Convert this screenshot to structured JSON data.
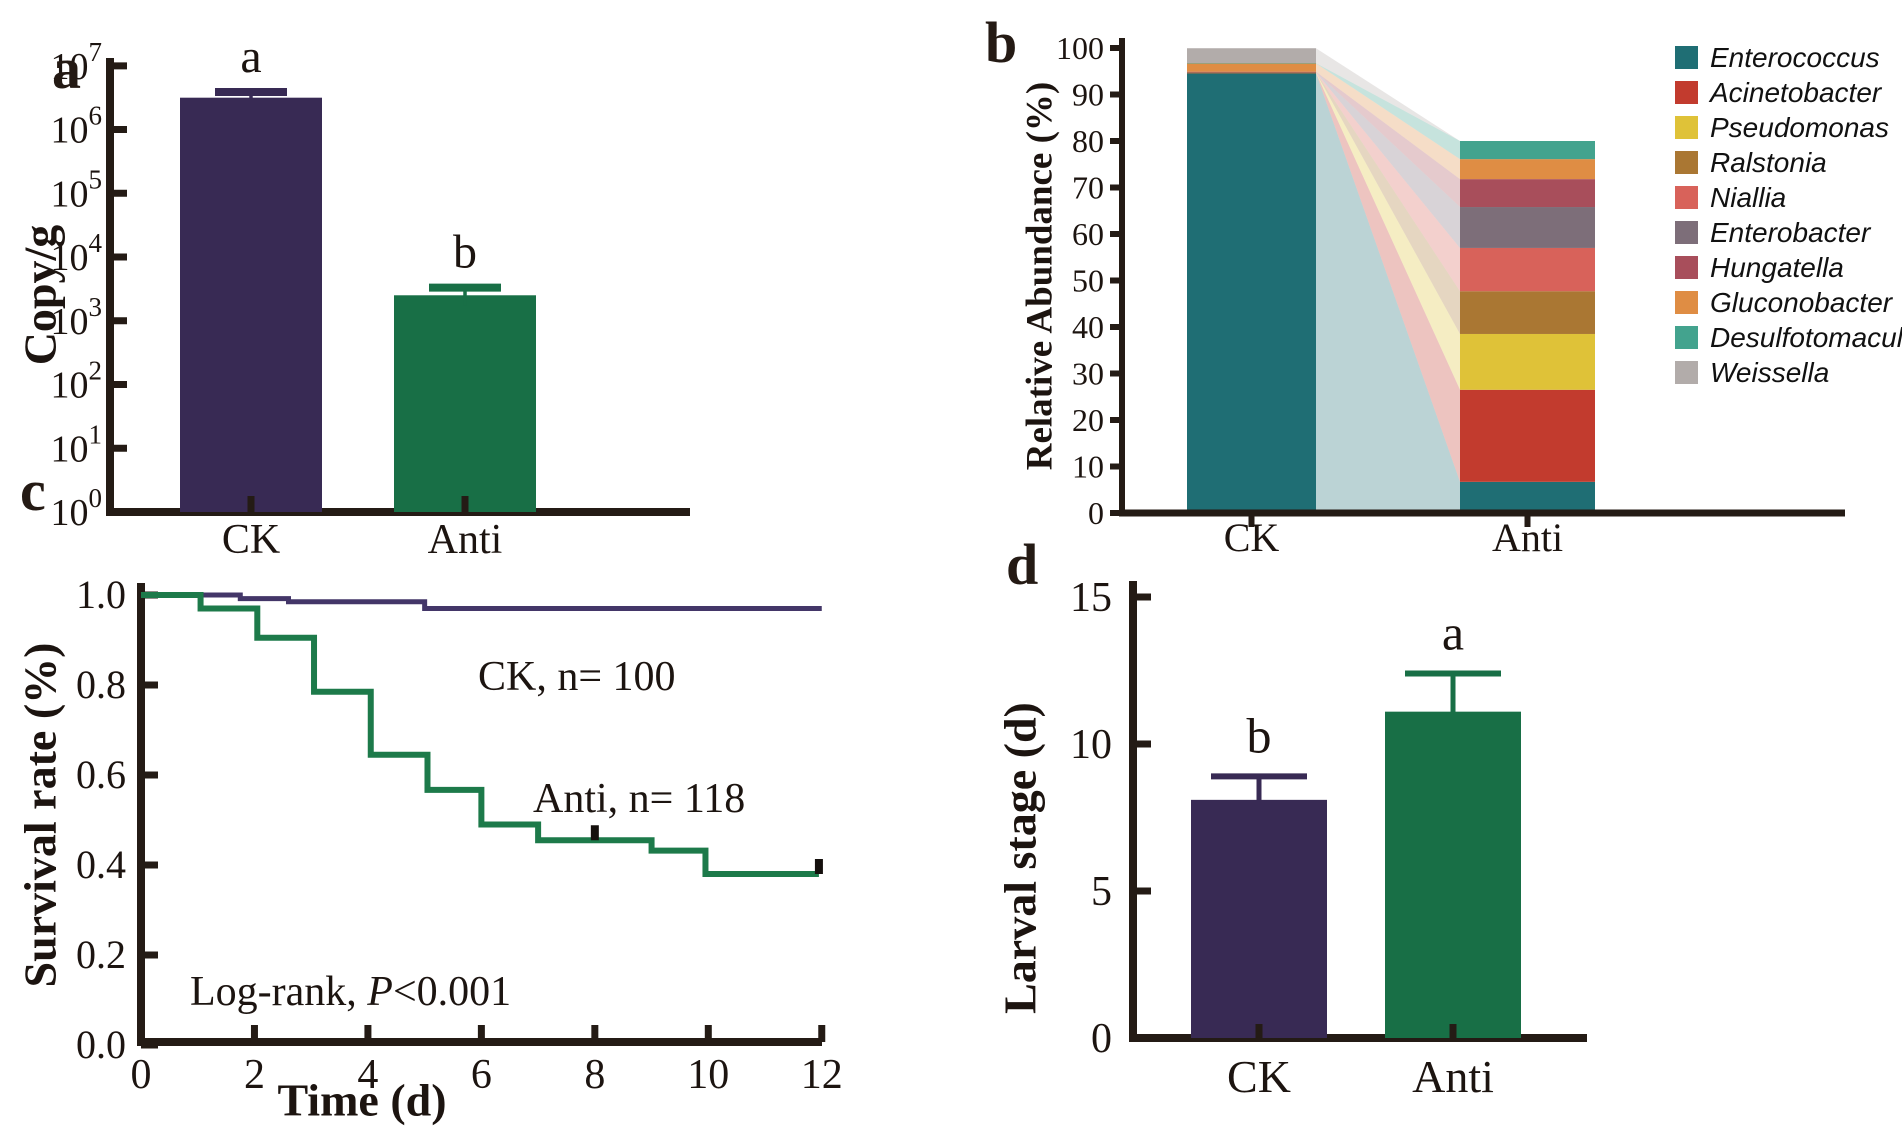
{
  "figure": {
    "background": "#ffffff",
    "axis_color": "#241b15",
    "text_color": "#1c1410"
  },
  "chart_data": [
    {
      "panel_letter": "a",
      "type": "bar",
      "yscale": "log10",
      "ylabel": "Copy/g",
      "y_tick_exponents": [
        0,
        1,
        2,
        3,
        4,
        5,
        6,
        7
      ],
      "categories": [
        "CK",
        "Anti"
      ],
      "values_log10": [
        6.5,
        3.4
      ],
      "values_approx": [
        "3.2e6",
        "2.5e3"
      ],
      "error_top_log10": [
        6.59,
        3.52
      ],
      "sig_labels": [
        "a",
        "b"
      ],
      "bar_colors": [
        "#382a54",
        "#186f46"
      ]
    },
    {
      "panel_letter": "b",
      "type": "stacked-bar-alluvial",
      "ylabel": "Relative Abundance (%)",
      "ylim": [
        0,
        100
      ],
      "y_ticks": [
        0,
        10,
        20,
        30,
        40,
        50,
        60,
        70,
        80,
        90,
        100
      ],
      "categories": [
        "CK",
        "Anti"
      ],
      "genera": [
        {
          "name": "Enterococcus",
          "color": "#1f6e74",
          "values": [
            94.6,
            6.7
          ]
        },
        {
          "name": "Acinetobacter",
          "color": "#c23b2e",
          "values": [
            0.05,
            19.8
          ]
        },
        {
          "name": "Pseudomonas",
          "color": "#dfc238",
          "values": [
            0.05,
            12.0
          ]
        },
        {
          "name": "Ralstonia",
          "color": "#aa7733",
          "values": [
            0.05,
            9.2
          ]
        },
        {
          "name": "Niallia",
          "color": "#d8625a",
          "values": [
            0.05,
            9.3
          ]
        },
        {
          "name": "Enterobacter",
          "color": "#7d6e79",
          "values": [
            0.05,
            8.8
          ]
        },
        {
          "name": "Hungatella",
          "color": "#a84e5b",
          "values": [
            0.05,
            6.0
          ]
        },
        {
          "name": "Gluconobacter",
          "color": "#df8d44",
          "values": [
            1.8,
            4.3
          ]
        },
        {
          "name": "Desulfotomaculum",
          "color": "#43a38e",
          "values": [
            0.05,
            3.9
          ]
        },
        {
          "name": "Weissella",
          "color": "#b2acaa",
          "values": [
            3.2,
            0
          ]
        }
      ]
    },
    {
      "panel_letter": "c",
      "type": "step-line-survival",
      "xlabel": "Time (d)",
      "ylabel": "Survival rate (%)",
      "xlim": [
        0,
        12
      ],
      "ylim": [
        0.0,
        1.0
      ],
      "x_ticks": [
        0,
        2,
        4,
        6,
        8,
        10,
        12
      ],
      "y_ticks": [
        0.0,
        0.2,
        0.4,
        0.6,
        0.8,
        1.0
      ],
      "annotation": {
        "prefix": "Log-rank, ",
        "italic": "P",
        "suffix": "<0.001",
        "full_text": "Log-rank, P<0.001"
      },
      "series": [
        {
          "name": "CK",
          "label": "CK, n= 100",
          "n": 100,
          "color": "#433668",
          "points": [
            [
              0,
              1.0
            ],
            [
              1.75,
              1.0
            ],
            [
              1.75,
              0.992
            ],
            [
              2.6,
              0.992
            ],
            [
              2.6,
              0.985
            ],
            [
              5.0,
              0.985
            ],
            [
              5.0,
              0.97
            ],
            [
              12,
              0.97
            ]
          ],
          "censor_marks": []
        },
        {
          "name": "Anti",
          "label": "Anti, n= 118",
          "n": 118,
          "color": "#1d7a4a",
          "points": [
            [
              0,
              1.0
            ],
            [
              1.05,
              1.0
            ],
            [
              1.05,
              0.97
            ],
            [
              2.05,
              0.97
            ],
            [
              2.05,
              0.905
            ],
            [
              3.05,
              0.905
            ],
            [
              3.05,
              0.785
            ],
            [
              4.05,
              0.785
            ],
            [
              4.05,
              0.645
            ],
            [
              5.05,
              0.645
            ],
            [
              5.05,
              0.567
            ],
            [
              6.0,
              0.567
            ],
            [
              6.0,
              0.49
            ],
            [
              7.0,
              0.49
            ],
            [
              7.0,
              0.455
            ],
            [
              9.0,
              0.455
            ],
            [
              9.0,
              0.432
            ],
            [
              9.95,
              0.432
            ],
            [
              9.95,
              0.38
            ],
            [
              11.95,
              0.38
            ]
          ],
          "censor_marks": [
            [
              8.0,
              0.455
            ],
            [
              11.95,
              0.38
            ]
          ]
        }
      ]
    },
    {
      "panel_letter": "d",
      "type": "bar",
      "ylabel": "Larval stage (d)",
      "ylim": [
        0,
        15
      ],
      "y_ticks": [
        0,
        5,
        10,
        15
      ],
      "categories": [
        "CK",
        "Anti"
      ],
      "values": [
        8.1,
        11.1
      ],
      "error_top": [
        8.9,
        12.4
      ],
      "sig_labels": [
        "b",
        "a"
      ],
      "bar_colors": [
        "#382a54",
        "#186f46"
      ]
    }
  ]
}
